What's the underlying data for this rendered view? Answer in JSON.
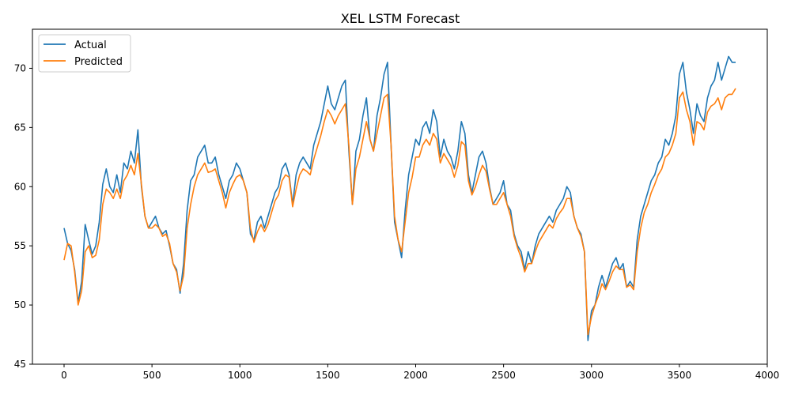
{
  "chart_data": {
    "type": "line",
    "title": "XEL LSTM Forecast",
    "xlabel": "",
    "ylabel": "",
    "xlim": [
      -180,
      4000
    ],
    "ylim": [
      45,
      73.3
    ],
    "xticks": [
      0,
      500,
      1000,
      1500,
      2000,
      2500,
      3000,
      3500,
      4000
    ],
    "yticks": [
      45,
      50,
      55,
      60,
      65,
      70
    ],
    "grid": false,
    "legend": "top-left",
    "series": [
      {
        "name": "Actual",
        "color": "#1f77b4",
        "x": [
          0,
          20,
          40,
          60,
          80,
          100,
          120,
          140,
          160,
          180,
          200,
          220,
          240,
          260,
          280,
          300,
          320,
          340,
          360,
          380,
          400,
          420,
          440,
          460,
          480,
          500,
          520,
          540,
          560,
          580,
          600,
          620,
          640,
          660,
          680,
          700,
          720,
          740,
          760,
          780,
          800,
          820,
          840,
          860,
          880,
          900,
          920,
          940,
          960,
          980,
          1000,
          1020,
          1040,
          1060,
          1080,
          1100,
          1120,
          1140,
          1160,
          1180,
          1200,
          1220,
          1240,
          1260,
          1280,
          1300,
          1320,
          1340,
          1360,
          1380,
          1400,
          1420,
          1440,
          1460,
          1480,
          1500,
          1520,
          1540,
          1560,
          1580,
          1600,
          1620,
          1640,
          1660,
          1680,
          1700,
          1720,
          1740,
          1760,
          1780,
          1800,
          1820,
          1840,
          1860,
          1880,
          1900,
          1920,
          1940,
          1960,
          1980,
          2000,
          2020,
          2040,
          2060,
          2080,
          2100,
          2120,
          2140,
          2160,
          2180,
          2200,
          2220,
          2240,
          2260,
          2280,
          2300,
          2320,
          2340,
          2360,
          2380,
          2400,
          2420,
          2440,
          2460,
          2480,
          2500,
          2520,
          2540,
          2560,
          2580,
          2600,
          2620,
          2640,
          2660,
          2680,
          2700,
          2720,
          2740,
          2760,
          2780,
          2800,
          2820,
          2840,
          2860,
          2880,
          2900,
          2920,
          2940,
          2960,
          2980,
          3000,
          3020,
          3040,
          3060,
          3080,
          3100,
          3120,
          3140,
          3160,
          3180,
          3200,
          3220,
          3240,
          3260,
          3280,
          3300,
          3320,
          3340,
          3360,
          3380,
          3400,
          3420,
          3440,
          3460,
          3480,
          3500,
          3520,
          3540,
          3560,
          3580,
          3600,
          3620,
          3640,
          3660,
          3680,
          3700,
          3720,
          3740,
          3760,
          3780,
          3800,
          3820
        ],
        "values": [
          56.5,
          55.2,
          54.6,
          53.0,
          50.2,
          52.0,
          56.8,
          55.5,
          54.3,
          55.0,
          57.0,
          60.2,
          61.5,
          60.0,
          59.5,
          61.0,
          59.5,
          62.0,
          61.5,
          63.0,
          62.0,
          64.8,
          60.0,
          57.5,
          56.5,
          57.0,
          57.5,
          56.5,
          56.0,
          56.3,
          55.0,
          53.5,
          53.0,
          51.0,
          53.5,
          58.0,
          60.5,
          61.0,
          62.5,
          63.0,
          63.5,
          62.0,
          62.0,
          62.5,
          61.0,
          60.0,
          59.0,
          60.5,
          61.0,
          62.0,
          61.5,
          60.5,
          59.5,
          56.0,
          55.5,
          57.0,
          57.5,
          56.5,
          57.5,
          58.5,
          59.5,
          60.0,
          61.5,
          62.0,
          61.0,
          58.5,
          61.0,
          62.0,
          62.5,
          62.0,
          61.5,
          63.5,
          64.5,
          65.5,
          67.0,
          68.5,
          67.0,
          66.5,
          67.5,
          68.5,
          69.0,
          63.0,
          58.5,
          63.0,
          64.0,
          66.0,
          67.5,
          64.0,
          63.0,
          66.0,
          67.5,
          69.5,
          70.5,
          63.5,
          57.0,
          55.5,
          54.0,
          58.0,
          61.0,
          62.5,
          64.0,
          63.5,
          65.0,
          65.5,
          64.5,
          66.5,
          65.5,
          62.5,
          64.0,
          63.0,
          62.5,
          61.5,
          63.0,
          65.5,
          64.5,
          61.0,
          59.5,
          61.0,
          62.5,
          63.0,
          62.0,
          60.0,
          58.5,
          59.0,
          59.5,
          60.5,
          58.5,
          58.0,
          56.0,
          55.0,
          54.5,
          53.0,
          54.5,
          53.5,
          55.0,
          56.0,
          56.5,
          57.0,
          57.5,
          57.0,
          58.0,
          58.5,
          59.0,
          60.0,
          59.5,
          57.5,
          56.5,
          56.0,
          54.5,
          47.0,
          49.5,
          50.0,
          51.5,
          52.5,
          51.5,
          52.5,
          53.5,
          54.0,
          53.0,
          53.5,
          51.5,
          52.0,
          51.5,
          55.5,
          57.5,
          58.5,
          59.5,
          60.5,
          61.0,
          62.0,
          62.5,
          64.0,
          63.5,
          64.5,
          66.0,
          69.5,
          70.5,
          68.0,
          66.5,
          64.5,
          67.0,
          66.0,
          65.5,
          67.5,
          68.5,
          69.0,
          70.5,
          69.0,
          70.0,
          71.0,
          70.5,
          70.5
        ],
        "lw": 1.6
      },
      {
        "name": "Predicted",
        "color": "#ff7f0e",
        "x": [
          0,
          20,
          40,
          60,
          80,
          100,
          120,
          140,
          160,
          180,
          200,
          220,
          240,
          260,
          280,
          300,
          320,
          340,
          360,
          380,
          400,
          420,
          440,
          460,
          480,
          500,
          520,
          540,
          560,
          580,
          600,
          620,
          640,
          660,
          680,
          700,
          720,
          740,
          760,
          780,
          800,
          820,
          840,
          860,
          880,
          900,
          920,
          940,
          960,
          980,
          1000,
          1020,
          1040,
          1060,
          1080,
          1100,
          1120,
          1140,
          1160,
          1180,
          1200,
          1220,
          1240,
          1260,
          1280,
          1300,
          1320,
          1340,
          1360,
          1380,
          1400,
          1420,
          1440,
          1460,
          1480,
          1500,
          1520,
          1540,
          1560,
          1580,
          1600,
          1620,
          1640,
          1660,
          1680,
          1700,
          1720,
          1740,
          1760,
          1780,
          1800,
          1820,
          1840,
          1860,
          1880,
          1900,
          1920,
          1940,
          1960,
          1980,
          2000,
          2020,
          2040,
          2060,
          2080,
          2100,
          2120,
          2140,
          2160,
          2180,
          2200,
          2220,
          2240,
          2260,
          2280,
          2300,
          2320,
          2340,
          2360,
          2380,
          2400,
          2420,
          2440,
          2460,
          2480,
          2500,
          2520,
          2540,
          2560,
          2580,
          2600,
          2620,
          2640,
          2660,
          2680,
          2700,
          2720,
          2740,
          2760,
          2780,
          2800,
          2820,
          2840,
          2860,
          2880,
          2900,
          2920,
          2940,
          2960,
          2980,
          3000,
          3020,
          3040,
          3060,
          3080,
          3100,
          3120,
          3140,
          3160,
          3180,
          3200,
          3220,
          3240,
          3260,
          3280,
          3300,
          3320,
          3340,
          3360,
          3380,
          3400,
          3420,
          3440,
          3460,
          3480,
          3500,
          3520,
          3540,
          3560,
          3580,
          3600,
          3620,
          3640,
          3660,
          3680,
          3700,
          3720,
          3740,
          3760,
          3780,
          3800,
          3820
        ],
        "values": [
          53.8,
          55.2,
          55.0,
          52.8,
          50.0,
          51.2,
          54.5,
          55.0,
          54.0,
          54.2,
          55.5,
          58.5,
          59.8,
          59.5,
          59.0,
          59.8,
          59.0,
          60.5,
          61.0,
          61.8,
          61.0,
          62.8,
          60.2,
          57.5,
          56.5,
          56.5,
          56.8,
          56.5,
          55.8,
          56.0,
          55.2,
          53.5,
          52.8,
          51.2,
          52.5,
          56.5,
          58.5,
          60.0,
          61.0,
          61.5,
          62.0,
          61.2,
          61.3,
          61.5,
          60.5,
          59.5,
          58.2,
          59.5,
          60.2,
          60.8,
          61.0,
          60.5,
          59.5,
          56.5,
          55.3,
          56.2,
          56.8,
          56.2,
          56.8,
          57.8,
          58.8,
          59.3,
          60.5,
          61.0,
          60.8,
          58.3,
          59.8,
          61.0,
          61.5,
          61.3,
          61.0,
          62.3,
          63.3,
          64.3,
          65.5,
          66.5,
          66.0,
          65.3,
          66.0,
          66.5,
          67.0,
          63.5,
          58.5,
          61.5,
          62.5,
          64.0,
          65.5,
          64.0,
          63.0,
          64.5,
          66.0,
          67.5,
          67.8,
          63.5,
          57.5,
          55.5,
          54.5,
          57.0,
          59.5,
          60.8,
          62.5,
          62.5,
          63.5,
          64.0,
          63.5,
          64.5,
          64.0,
          62.0,
          62.8,
          62.3,
          61.8,
          60.8,
          61.8,
          63.8,
          63.5,
          60.5,
          59.3,
          60.0,
          61.0,
          61.8,
          61.3,
          59.8,
          58.5,
          58.5,
          59.0,
          59.5,
          58.5,
          57.5,
          55.8,
          54.8,
          54.0,
          52.8,
          53.5,
          53.5,
          54.5,
          55.3,
          55.8,
          56.3,
          56.8,
          56.5,
          57.3,
          57.8,
          58.2,
          59.0,
          59.0,
          57.5,
          56.5,
          55.8,
          54.5,
          47.5,
          49.0,
          50.0,
          50.8,
          51.8,
          51.3,
          52.0,
          52.8,
          53.3,
          53.0,
          53.0,
          51.5,
          51.7,
          51.3,
          54.5,
          56.5,
          57.8,
          58.5,
          59.5,
          60.2,
          61.0,
          61.5,
          62.5,
          62.8,
          63.5,
          64.5,
          67.5,
          68.0,
          66.5,
          65.5,
          63.5,
          65.5,
          65.3,
          64.8,
          66.3,
          66.8,
          67.0,
          67.5,
          66.5,
          67.5,
          67.8,
          67.8,
          68.3
        ],
        "lw": 1.6
      }
    ]
  }
}
